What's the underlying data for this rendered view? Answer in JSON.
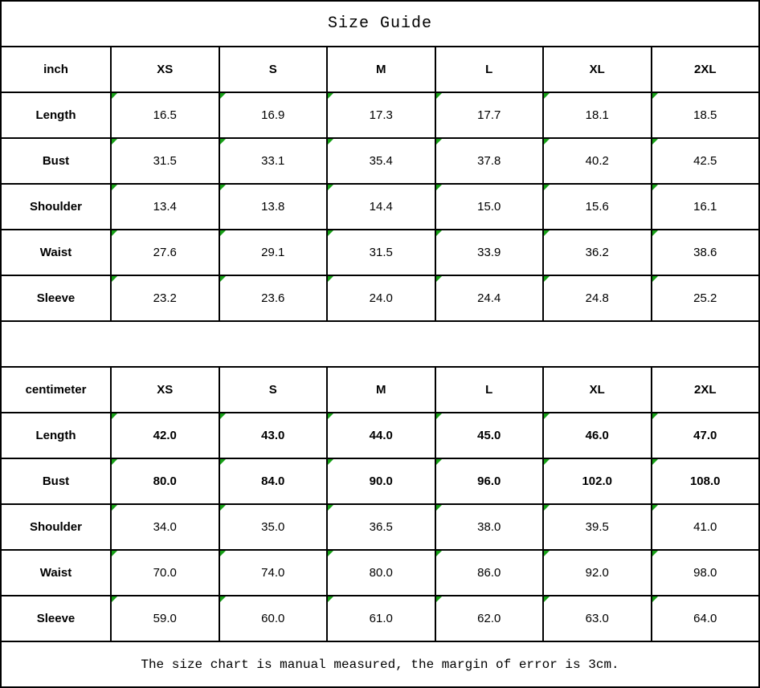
{
  "title": "Size Guide",
  "footer_note": "The size chart is manual measured, the margin of error is 3cm.",
  "colors": {
    "background": "#ffffff",
    "border": "#000000",
    "text": "#000000",
    "cell_marker_green": "#17a017"
  },
  "chart_data": {
    "type": "table",
    "tables": [
      {
        "unit": "inch",
        "columns": [
          "XS",
          "S",
          "M",
          "L",
          "XL",
          "2XL"
        ],
        "rows": [
          {
            "label": "Length",
            "values": [
              "16.5",
              "16.9",
              "17.3",
              "17.7",
              "18.1",
              "18.5"
            ],
            "bold": false
          },
          {
            "label": "Bust",
            "values": [
              "31.5",
              "33.1",
              "35.4",
              "37.8",
              "40.2",
              "42.5"
            ],
            "bold": false
          },
          {
            "label": "Shoulder",
            "values": [
              "13.4",
              "13.8",
              "14.4",
              "15.0",
              "15.6",
              "16.1"
            ],
            "bold": false
          },
          {
            "label": "Waist",
            "values": [
              "27.6",
              "29.1",
              "31.5",
              "33.9",
              "36.2",
              "38.6"
            ],
            "bold": false
          },
          {
            "label": "Sleeve",
            "values": [
              "23.2",
              "23.6",
              "24.0",
              "24.4",
              "24.8",
              "25.2"
            ],
            "bold": false
          }
        ]
      },
      {
        "unit": "centimeter",
        "columns": [
          "XS",
          "S",
          "M",
          "L",
          "XL",
          "2XL"
        ],
        "rows": [
          {
            "label": "Length",
            "values": [
              "42.0",
              "43.0",
              "44.0",
              "45.0",
              "46.0",
              "47.0"
            ],
            "bold": true
          },
          {
            "label": "Bust",
            "values": [
              "80.0",
              "84.0",
              "90.0",
              "96.0",
              "102.0",
              "108.0"
            ],
            "bold": true
          },
          {
            "label": "Shoulder",
            "values": [
              "34.0",
              "35.0",
              "36.5",
              "38.0",
              "39.5",
              "41.0"
            ],
            "bold": false
          },
          {
            "label": "Waist",
            "values": [
              "70.0",
              "74.0",
              "80.0",
              "86.0",
              "92.0",
              "98.0"
            ],
            "bold": false
          },
          {
            "label": "Sleeve",
            "values": [
              "59.0",
              "60.0",
              "61.0",
              "62.0",
              "63.0",
              "64.0"
            ],
            "bold": false
          }
        ]
      }
    ]
  }
}
